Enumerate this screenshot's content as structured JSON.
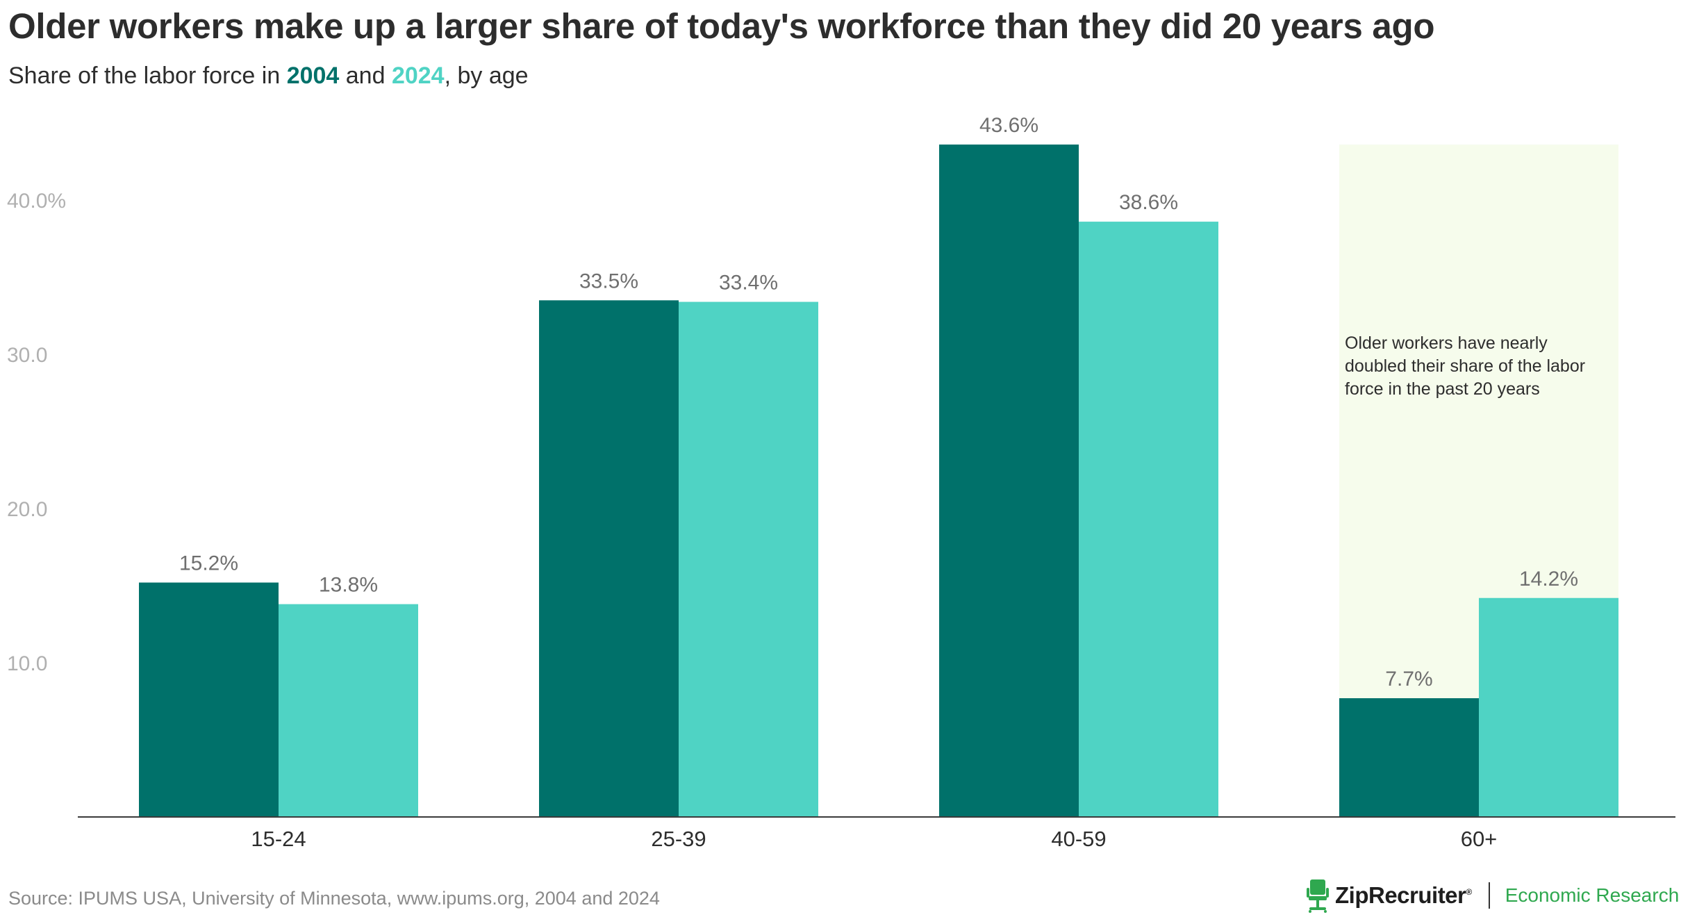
{
  "title": "Older workers make up a larger share of today's workforce than they did 20 years ago",
  "subtitle": {
    "prefix": "Share of the labor force in ",
    "year1": "2004",
    "middle": " and ",
    "year2": "2024",
    "suffix": ", by age"
  },
  "source": "Source: IPUMS USA, University of Minnesota, www.ipums.org, 2004 and 2024",
  "brand": {
    "name": "ZipRecruiter",
    "reg": "®",
    "division": "Economic Research"
  },
  "colors": {
    "series_2004": "#00716a",
    "series_2024": "#4fd3c4",
    "highlight": "#f6fcec",
    "brand_green": "#2fa84f"
  },
  "chart_data": {
    "type": "bar",
    "categories": [
      "15-24",
      "25-39",
      "40-59",
      "60+"
    ],
    "series": [
      {
        "name": "2004",
        "values": [
          15.2,
          33.5,
          43.6,
          7.7
        ],
        "labels": [
          "15.2%",
          "33.5%",
          "43.6%",
          "7.7%"
        ]
      },
      {
        "name": "2024",
        "values": [
          13.8,
          33.4,
          38.6,
          14.2
        ],
        "labels": [
          "13.8%",
          "33.4%",
          "38.6%",
          "14.2%"
        ]
      }
    ],
    "ylim": [
      0,
      44
    ],
    "y_ticks": [
      10,
      20,
      30,
      40
    ],
    "y_tick_labels": [
      "10.0",
      "20.0",
      "30.0",
      "40.0%"
    ],
    "grid": false,
    "highlight_category": "60+",
    "annotation": [
      "Older workers have nearly",
      "doubled their share of the labor",
      "force in the past 20 years"
    ]
  }
}
